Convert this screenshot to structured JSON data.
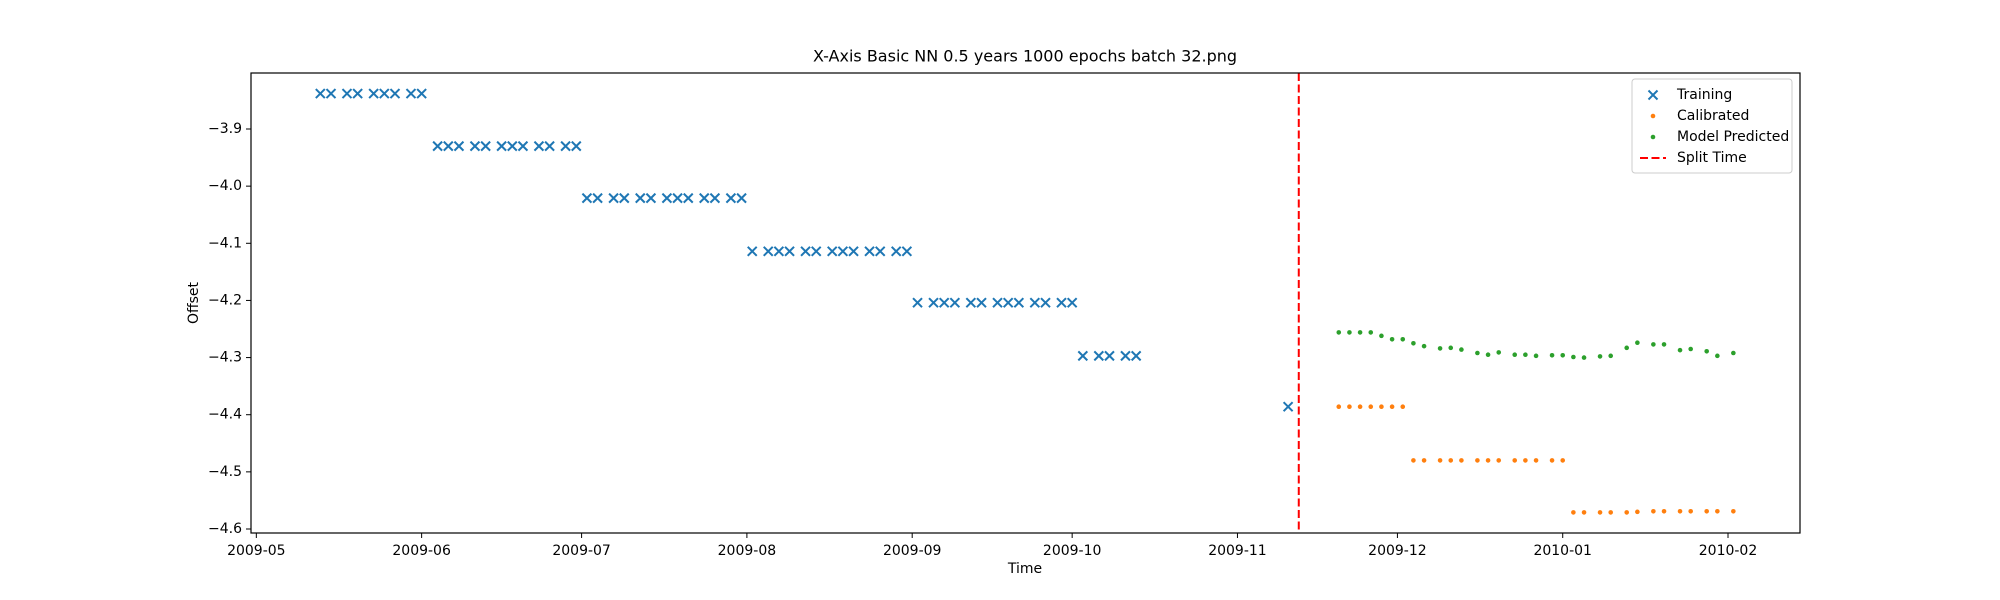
{
  "chart_data": {
    "type": "scatter",
    "title": "X-Axis Basic NN 0.5 years 1000 epochs batch 32.png",
    "xlabel": "Time",
    "ylabel": "Offset",
    "xlim": [
      -1,
      289.5
    ],
    "xticks": [
      {
        "value": 0,
        "label": "2009-05"
      },
      {
        "value": 31,
        "label": "2009-06"
      },
      {
        "value": 61,
        "label": "2009-07"
      },
      {
        "value": 92,
        "label": "2009-08"
      },
      {
        "value": 123,
        "label": "2009-09"
      },
      {
        "value": 153,
        "label": "2009-10"
      },
      {
        "value": 184,
        "label": "2009-11"
      },
      {
        "value": 214,
        "label": "2009-12"
      },
      {
        "value": 245,
        "label": "2010-01"
      },
      {
        "value": 276,
        "label": "2010-02"
      }
    ],
    "ylim": [
      -4.607,
      -3.802
    ],
    "yticks": [
      {
        "value": -3.9,
        "label": "−3.9"
      },
      {
        "value": -4.0,
        "label": "−4.0"
      },
      {
        "value": -4.1,
        "label": "−4.1"
      },
      {
        "value": -4.2,
        "label": "−4.2"
      },
      {
        "value": -4.3,
        "label": "−4.3"
      },
      {
        "value": -4.4,
        "label": "−4.4"
      },
      {
        "value": -4.5,
        "label": "−4.5"
      },
      {
        "value": -4.6,
        "label": "−4.6"
      }
    ],
    "legend": "upper right",
    "series": [
      {
        "name": "Training",
        "color": "#1f77b4",
        "marker": "x",
        "x": [
          12,
          14,
          17,
          19,
          22,
          24,
          26,
          29,
          31,
          34,
          36,
          38,
          41,
          43,
          46,
          48,
          50,
          53,
          55,
          58,
          60,
          62,
          64,
          67,
          69,
          72,
          74,
          77,
          79,
          81,
          84,
          86,
          89,
          91,
          93,
          96,
          98,
          100,
          103,
          105,
          108,
          110,
          112,
          115,
          117,
          120,
          122,
          124,
          127,
          129,
          131,
          134,
          136,
          139,
          141,
          143,
          146,
          148,
          151,
          153,
          155,
          158,
          160,
          163,
          165,
          193.5
        ],
        "values": [
          -3.838,
          -3.838,
          -3.838,
          -3.838,
          -3.838,
          -3.838,
          -3.838,
          -3.838,
          -3.838,
          -3.93,
          -3.93,
          -3.93,
          -3.93,
          -3.93,
          -3.93,
          -3.93,
          -3.93,
          -3.93,
          -3.93,
          -3.93,
          -3.93,
          -4.021,
          -4.021,
          -4.021,
          -4.021,
          -4.021,
          -4.021,
          -4.021,
          -4.021,
          -4.021,
          -4.021,
          -4.021,
          -4.021,
          -4.021,
          -4.114,
          -4.114,
          -4.114,
          -4.114,
          -4.114,
          -4.114,
          -4.114,
          -4.114,
          -4.114,
          -4.114,
          -4.114,
          -4.114,
          -4.114,
          -4.204,
          -4.204,
          -4.204,
          -4.204,
          -4.204,
          -4.204,
          -4.204,
          -4.204,
          -4.204,
          -4.204,
          -4.204,
          -4.204,
          -4.204,
          -4.297,
          -4.297,
          -4.297,
          -4.297,
          -4.297,
          -4.386
        ]
      },
      {
        "name": "Calibrated",
        "color": "#ff7f0e",
        "marker": "dot",
        "x": [
          203,
          205,
          207,
          209,
          211,
          213,
          215,
          217,
          219,
          222,
          224,
          226,
          229,
          231,
          233,
          236,
          238,
          240,
          243,
          245,
          247,
          249,
          252,
          254,
          257,
          259,
          262,
          264,
          267,
          269,
          272,
          274,
          277
        ],
        "values": [
          -4.386,
          -4.386,
          -4.386,
          -4.386,
          -4.386,
          -4.386,
          -4.386,
          -4.48,
          -4.48,
          -4.48,
          -4.48,
          -4.48,
          -4.48,
          -4.48,
          -4.48,
          -4.48,
          -4.48,
          -4.48,
          -4.48,
          -4.48,
          -4.571,
          -4.571,
          -4.571,
          -4.571,
          -4.571,
          -4.57,
          -4.569,
          -4.569,
          -4.569,
          -4.569,
          -4.569,
          -4.569,
          -4.569
        ]
      },
      {
        "name": "Model Predicted",
        "color": "#2ca02c",
        "marker": "dot",
        "x": [
          203,
          205,
          207,
          209,
          211,
          213,
          215,
          217,
          219,
          222,
          224,
          226,
          229,
          231,
          233,
          236,
          238,
          240,
          243,
          245,
          247,
          249,
          252,
          254,
          257,
          259,
          262,
          264,
          267,
          269,
          272,
          274,
          277
        ],
        "values": [
          -4.256,
          -4.256,
          -4.256,
          -4.256,
          -4.262,
          -4.268,
          -4.268,
          -4.275,
          -4.28,
          -4.284,
          -4.283,
          -4.286,
          -4.292,
          -4.295,
          -4.291,
          -4.295,
          -4.295,
          -4.297,
          -4.296,
          -4.296,
          -4.299,
          -4.3,
          -4.298,
          -4.297,
          -4.283,
          -4.274,
          -4.277,
          -4.277,
          -4.287,
          -4.285,
          -4.289,
          -4.297,
          -4.292
        ]
      }
    ],
    "split": {
      "name": "Split Time",
      "color": "#ff0000",
      "x": 195.5
    }
  }
}
